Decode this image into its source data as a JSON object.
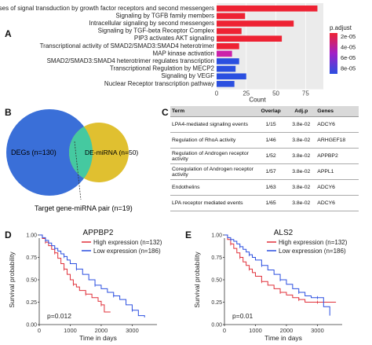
{
  "panels": {
    "A": "A",
    "B": "B",
    "C": "C",
    "D": "D",
    "E": "E"
  },
  "chart_data": [
    {
      "type": "bar",
      "orientation": "horizontal",
      "categories": [
        "Diseases of signal transduction by growth factor receptors and second messengers",
        "Signaling by TGFB family members",
        "Intracellular signaling by second messengers",
        "Signaling by TGF-beta Receptor Complex",
        "PIP3 activates AKT signaling",
        "Transcriptional activity of SMAD2/SMAD3:SMAD4 heterotrimer",
        "MAP kinase activation",
        "SMAD2/SMAD3:SMAD4 heterotrimer regulates transcription",
        "Transcriptional Regulation by MECP2",
        "Signaling by VEGF",
        "Nuclear Receptor transcription pathway"
      ],
      "values": [
        85,
        24,
        65,
        21,
        55,
        19,
        13,
        19,
        16,
        25,
        15
      ],
      "p_adjust": [
        1.3e-05,
        1.5e-05,
        1.6e-05,
        1.8e-05,
        2e-05,
        2.2e-05,
        4.2e-05,
        5.5e-05,
        7.2e-05,
        8e-05,
        8.2e-05
      ],
      "colors": [
        "#ee2233",
        "#ee2233",
        "#ee2233",
        "#ee2233",
        "#ee2233",
        "#ee2233",
        "#cc22aa",
        "#2b4fe0",
        "#2b4fe0",
        "#2b4fe0",
        "#2b4fe0"
      ],
      "xlabel": "Count",
      "xticks": [
        0,
        25,
        50,
        75
      ],
      "xlim": [
        0,
        90
      ],
      "legend": {
        "title": "p.adjust",
        "ticks": [
          "2e-05",
          "4e-05",
          "6e-05",
          "8e-05"
        ],
        "placement": "right"
      }
    },
    {
      "type": "survival",
      "title": "APPBP2",
      "xlabel": "Time in days",
      "ylabel": "Survival probability",
      "xlim": [
        0,
        3800
      ],
      "ylim": [
        0,
        1.0
      ],
      "xticks": [
        0,
        1000,
        2000,
        3000
      ],
      "yticks": [
        "0.00",
        "0.25",
        "0.50",
        "0.75",
        "1.00"
      ],
      "pvalue": "p=0.012",
      "legend_placement": "top-right",
      "series": [
        {
          "name": "High expression (n=132)",
          "color": "#e0303a",
          "points": [
            [
              0,
              1.0
            ],
            [
              100,
              0.96
            ],
            [
              200,
              0.92
            ],
            [
              300,
              0.88
            ],
            [
              400,
              0.84
            ],
            [
              500,
              0.8
            ],
            [
              600,
              0.74
            ],
            [
              700,
              0.68
            ],
            [
              800,
              0.62
            ],
            [
              900,
              0.56
            ],
            [
              1000,
              0.5
            ],
            [
              1100,
              0.45
            ],
            [
              1200,
              0.42
            ],
            [
              1300,
              0.38
            ],
            [
              1500,
              0.34
            ],
            [
              1700,
              0.3
            ],
            [
              1900,
              0.26
            ],
            [
              2000,
              0.22
            ],
            [
              2100,
              0.14
            ],
            [
              2300,
              0.14
            ]
          ]
        },
        {
          "name": "Low expression (n=186)",
          "color": "#2b4fe0",
          "points": [
            [
              0,
              1.0
            ],
            [
              100,
              0.97
            ],
            [
              200,
              0.94
            ],
            [
              300,
              0.91
            ],
            [
              400,
              0.88
            ],
            [
              500,
              0.85
            ],
            [
              600,
              0.82
            ],
            [
              700,
              0.79
            ],
            [
              800,
              0.76
            ],
            [
              900,
              0.72
            ],
            [
              1000,
              0.68
            ],
            [
              1200,
              0.62
            ],
            [
              1400,
              0.56
            ],
            [
              1600,
              0.5
            ],
            [
              1800,
              0.44
            ],
            [
              2000,
              0.4
            ],
            [
              2200,
              0.36
            ],
            [
              2400,
              0.32
            ],
            [
              2600,
              0.28
            ],
            [
              2800,
              0.22
            ],
            [
              3000,
              0.16
            ],
            [
              3200,
              0.1
            ],
            [
              3400,
              0.08
            ]
          ]
        }
      ]
    },
    {
      "type": "survival",
      "title": "ALS2",
      "xlabel": "Time in days",
      "ylabel": "Survival probability",
      "xlim": [
        0,
        3800
      ],
      "ylim": [
        0,
        1.0
      ],
      "xticks": [
        0,
        1000,
        2000,
        3000
      ],
      "yticks": [
        "0.00",
        "0.25",
        "0.50",
        "0.75",
        "1.00"
      ],
      "pvalue": "p=0.01",
      "legend_placement": "top-right",
      "series": [
        {
          "name": "High expression (n=132)",
          "color": "#e0303a",
          "points": [
            [
              0,
              1.0
            ],
            [
              100,
              0.95
            ],
            [
              200,
              0.9
            ],
            [
              300,
              0.85
            ],
            [
              400,
              0.8
            ],
            [
              500,
              0.75
            ],
            [
              600,
              0.7
            ],
            [
              700,
              0.66
            ],
            [
              800,
              0.62
            ],
            [
              900,
              0.58
            ],
            [
              1000,
              0.54
            ],
            [
              1200,
              0.48
            ],
            [
              1400,
              0.44
            ],
            [
              1600,
              0.4
            ],
            [
              1800,
              0.36
            ],
            [
              2000,
              0.33
            ],
            [
              2200,
              0.3
            ],
            [
              2400,
              0.28
            ],
            [
              2600,
              0.25
            ],
            [
              2800,
              0.25
            ],
            [
              3000,
              0.25
            ],
            [
              3200,
              0.25
            ],
            [
              3600,
              0.25
            ]
          ]
        },
        {
          "name": "Low expression (n=186)",
          "color": "#2b4fe0",
          "points": [
            [
              0,
              1.0
            ],
            [
              100,
              0.97
            ],
            [
              200,
              0.95
            ],
            [
              300,
              0.93
            ],
            [
              400,
              0.9
            ],
            [
              500,
              0.87
            ],
            [
              600,
              0.84
            ],
            [
              700,
              0.81
            ],
            [
              800,
              0.78
            ],
            [
              900,
              0.75
            ],
            [
              1000,
              0.72
            ],
            [
              1200,
              0.66
            ],
            [
              1400,
              0.61
            ],
            [
              1600,
              0.56
            ],
            [
              1800,
              0.5
            ],
            [
              2000,
              0.45
            ],
            [
              2200,
              0.4
            ],
            [
              2400,
              0.36
            ],
            [
              2600,
              0.32
            ],
            [
              2800,
              0.3
            ],
            [
              3000,
              0.3
            ],
            [
              3200,
              0.2
            ],
            [
              3400,
              0.1
            ]
          ]
        }
      ]
    }
  ],
  "venn": {
    "left_label": "DEGs (n=130)",
    "right_label": "DE-miRNA (n=50)",
    "bottom_label": "Target gene-miRNA pair (n=19)",
    "left_color": "#3a6fd8",
    "right_color": "#e0c030",
    "overlap_color": "#45c9a0"
  },
  "table": {
    "headers": [
      "Term",
      "Overlap",
      "Adj.p",
      "Genes"
    ],
    "rows": [
      [
        "LPA4-mediated signaling events",
        "1/15",
        "3.8e-02",
        "ADCY6"
      ],
      [
        "Regulation of RhoA activity",
        "1/46",
        "3.8e-02",
        "ARHGEF18"
      ],
      [
        "Regulation of Androgen receptor activity",
        "1/52",
        "3.8e-02",
        "APPBP2"
      ],
      [
        "Coregulation of Androgen receptor activity",
        "1/57",
        "3.8e-02",
        "APPL1"
      ],
      [
        "Endothelins",
        "1/63",
        "3.8e-02",
        "ADCY6"
      ],
      [
        "LPA receptor mediated events",
        "1/65",
        "3.8e-02",
        "ADCY6"
      ]
    ]
  }
}
